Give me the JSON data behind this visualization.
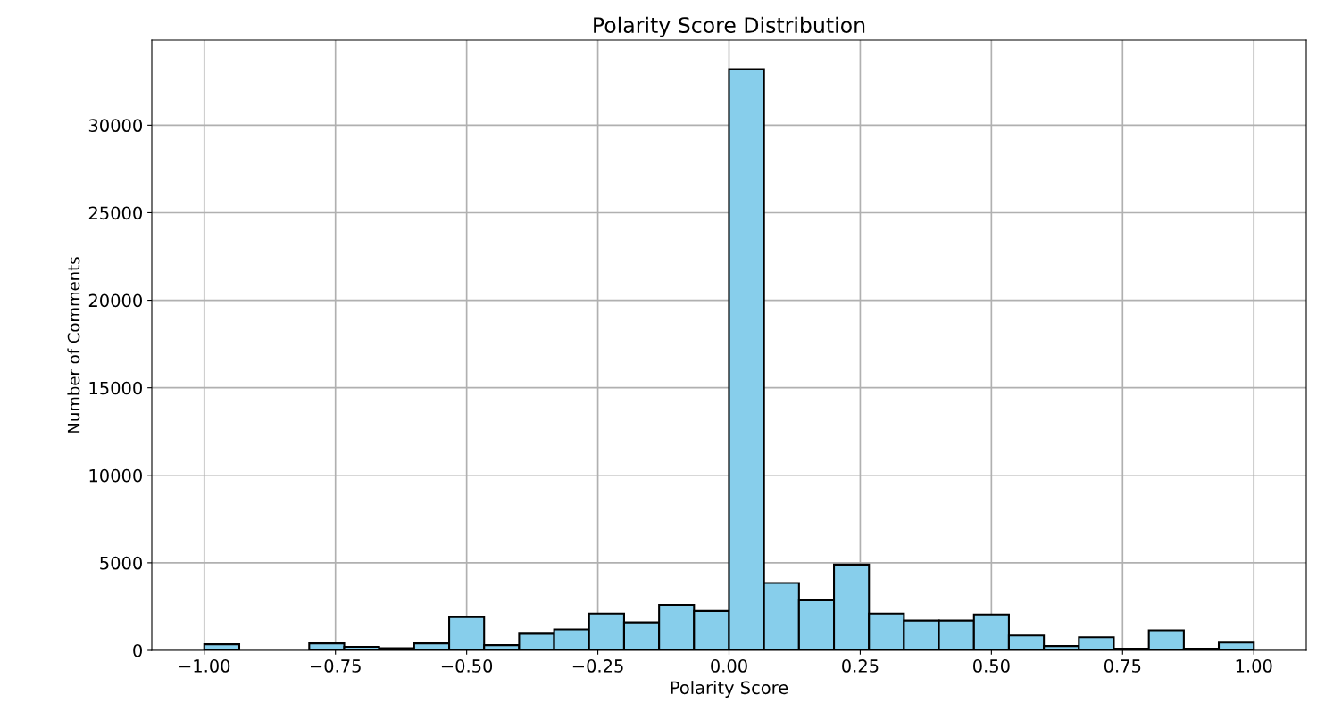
{
  "chart_data": {
    "type": "histogram",
    "title": "Polarity Score Distribution",
    "xlabel": "Polarity Score",
    "ylabel": "Number of Comments",
    "bins": [
      -1.0,
      -0.9333,
      -0.8667,
      -0.8,
      -0.7333,
      -0.6667,
      -0.6,
      -0.5333,
      -0.4667,
      -0.4,
      -0.3333,
      -0.2667,
      -0.2,
      -0.1333,
      -0.0667,
      0.0,
      0.0667,
      0.1333,
      0.2,
      0.2667,
      0.3333,
      0.4,
      0.4667,
      0.5333,
      0.6,
      0.6667,
      0.7333,
      0.8,
      0.8667,
      0.9333,
      1.0
    ],
    "values": [
      350,
      0,
      0,
      400,
      200,
      120,
      400,
      1900,
      300,
      950,
      1200,
      2100,
      1600,
      2600,
      2250,
      33200,
      3850,
      2850,
      4900,
      2100,
      1700,
      1700,
      2050,
      850,
      250,
      750,
      100,
      1150,
      100,
      450
    ],
    "color": "#87ceeb",
    "xlim": [
      -1.1,
      1.1
    ],
    "ylim": [
      0,
      34860
    ],
    "xticks": [
      {
        "value": -1.0,
        "label": "−1.00"
      },
      {
        "value": -0.75,
        "label": "−0.75"
      },
      {
        "value": -0.5,
        "label": "−0.50"
      },
      {
        "value": -0.25,
        "label": "−0.25"
      },
      {
        "value": 0.0,
        "label": "0.00"
      },
      {
        "value": 0.25,
        "label": "0.25"
      },
      {
        "value": 0.5,
        "label": "0.50"
      },
      {
        "value": 0.75,
        "label": "0.75"
      },
      {
        "value": 1.0,
        "label": "1.00"
      }
    ],
    "yticks": [
      0,
      5000,
      10000,
      15000,
      20000,
      25000,
      30000
    ],
    "grid": true
  }
}
